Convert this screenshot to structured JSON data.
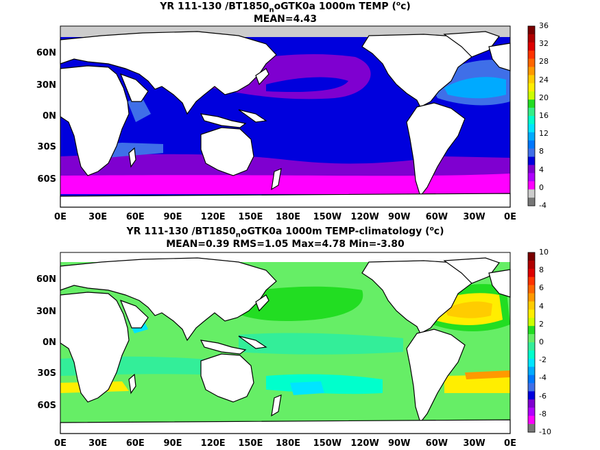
{
  "panels": [
    {
      "title_parts": [
        "YR 111-130 /BT1850",
        "n",
        "oGTK0a 1000m TEMP (",
        "o",
        "c)"
      ],
      "subtitle": "MEAN=4.43",
      "x_ticks": [
        "0E",
        "30E",
        "60E",
        "90E",
        "120E",
        "150E",
        "180E",
        "150W",
        "120W",
        "90W",
        "60W",
        "30W",
        "0E"
      ],
      "y_ticks": [
        "60N",
        "30N",
        "0N",
        "30S",
        "60S"
      ],
      "colorbar": {
        "labels": [
          "36",
          "32",
          "28",
          "24",
          "20",
          "16",
          "12",
          "8",
          "4",
          "0",
          "-4"
        ],
        "colors": [
          "#7a0000",
          "#b00000",
          "#dd0000",
          "#ff3300",
          "#ff6600",
          "#ff9900",
          "#ffcc00",
          "#ffee00",
          "#ccff00",
          "#22dd22",
          "#33ee88",
          "#00ffcc",
          "#00e5ff",
          "#00aaff",
          "#0077ff",
          "#3f6fe8",
          "#0000dd",
          "#7f00d0",
          "#b000ff",
          "#ff00ff",
          "#cccccc",
          "#777777"
        ]
      }
    },
    {
      "title_parts": [
        "YR 111-130 /BT1850",
        "n",
        "oGTK0a 1000m TEMP-climatology (",
        "o",
        "c)"
      ],
      "subtitle": "MEAN=0.39   RMS=1.05   Max=4.78   Min=-3.80",
      "x_ticks": [
        "0E",
        "30E",
        "60E",
        "90E",
        "120E",
        "150E",
        "180E",
        "150W",
        "120W",
        "90W",
        "60W",
        "30W",
        "0E"
      ],
      "y_ticks": [
        "60N",
        "30N",
        "0N",
        "30S",
        "60S"
      ],
      "colorbar": {
        "labels": [
          "10",
          "8",
          "6",
          "4",
          "2",
          "0",
          "-2",
          "-4",
          "-6",
          "-8",
          "-10"
        ],
        "colors": [
          "#7a0000",
          "#b00000",
          "#dd0000",
          "#ff3300",
          "#ff6600",
          "#ff9900",
          "#ffcc00",
          "#ffee00",
          "#ccff00",
          "#22dd22",
          "#66ee66",
          "#33ee99",
          "#00ffcc",
          "#00e5ff",
          "#00aaff",
          "#0077ff",
          "#3f6fe8",
          "#0000dd",
          "#7f00d0",
          "#b000ff",
          "#ff00ff",
          "#777777"
        ]
      }
    }
  ]
}
